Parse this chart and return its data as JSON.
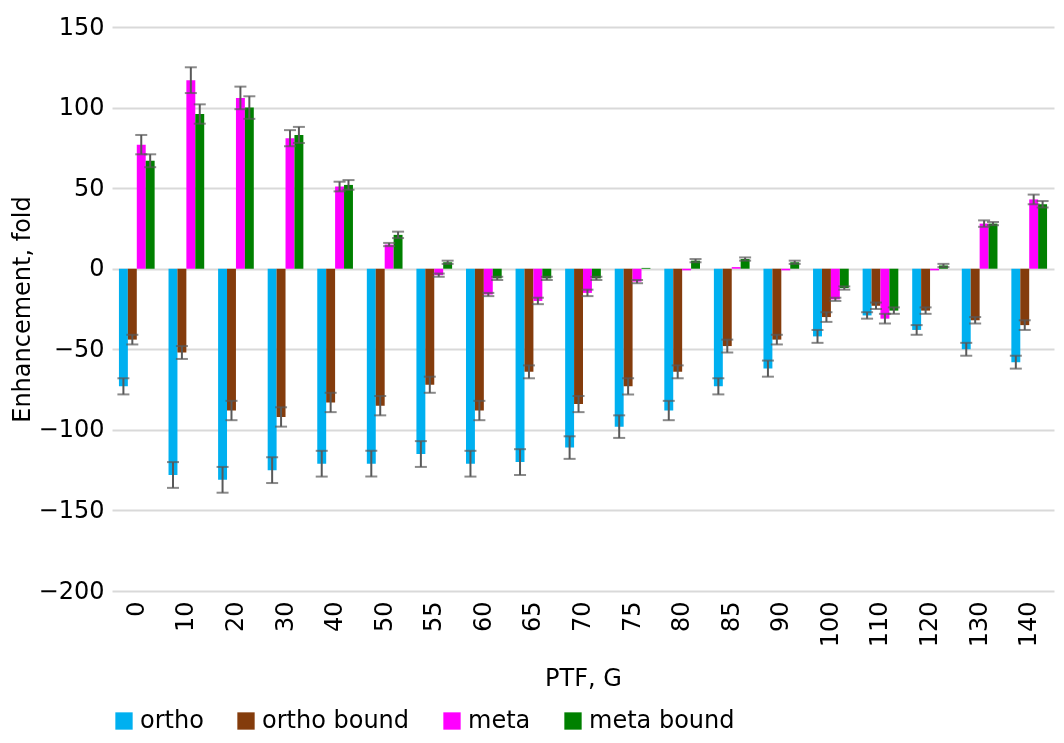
{
  "chart_data": {
    "type": "bar",
    "xlabel": "PTF, G",
    "ylabel": "Enhancement, fold",
    "categories": [
      "0",
      "10",
      "20",
      "30",
      "40",
      "50",
      "55",
      "60",
      "65",
      "70",
      "75",
      "80",
      "85",
      "90",
      "100",
      "110",
      "120",
      "130",
      "140"
    ],
    "series": [
      {
        "name": "ortho",
        "color": "#00b0f0",
        "values": [
          -73,
          -128,
          -131,
          -125,
          -121,
          -121,
          -115,
          -121,
          -120,
          -111,
          -98,
          -88,
          -73,
          -62,
          -42,
          -29,
          -38,
          -50,
          -58
        ],
        "errors": [
          5,
          8,
          8,
          8,
          8,
          8,
          8,
          8,
          8,
          7,
          7,
          6,
          5,
          5,
          4,
          2,
          3,
          4,
          4
        ]
      },
      {
        "name": "ortho bound",
        "color": "#843c0c",
        "values": [
          -44,
          -52,
          -88,
          -92,
          -83,
          -85,
          -72,
          -88,
          -64,
          -84,
          -73,
          -64,
          -48,
          -44,
          -30,
          -23,
          -26,
          -32,
          -35
        ],
        "errors": [
          3,
          4,
          6,
          6,
          6,
          6,
          5,
          6,
          4,
          5,
          5,
          4,
          4,
          3,
          3,
          2,
          2,
          2,
          3
        ]
      },
      {
        "name": "meta",
        "color": "#ff00ff",
        "values": [
          77,
          117,
          106,
          81,
          51,
          15,
          -4,
          -16,
          -20,
          -15,
          -8,
          -1,
          1,
          -1,
          -19,
          -31,
          -1,
          28,
          43
        ],
        "errors": [
          6,
          8,
          7,
          5,
          3,
          1,
          1,
          1,
          2,
          2,
          1,
          null,
          null,
          null,
          1,
          3,
          null,
          2,
          3
        ]
      },
      {
        "name": "meta bound",
        "color": "#008000",
        "values": [
          67,
          96,
          100,
          83,
          52,
          21,
          4,
          -6,
          -6,
          -6,
          0.5,
          5,
          6,
          4,
          -12,
          -26,
          2,
          28,
          40
        ],
        "errors": [
          4,
          6,
          7,
          5,
          3,
          2,
          1,
          1,
          1,
          1,
          null,
          1,
          1,
          1,
          1,
          2,
          1,
          1,
          2
        ]
      }
    ],
    "ylim": [
      -200,
      150
    ],
    "yticks": [
      -200,
      -150,
      -100,
      -50,
      0,
      50,
      100,
      150
    ],
    "grid": "y",
    "legend": "bottom"
  }
}
